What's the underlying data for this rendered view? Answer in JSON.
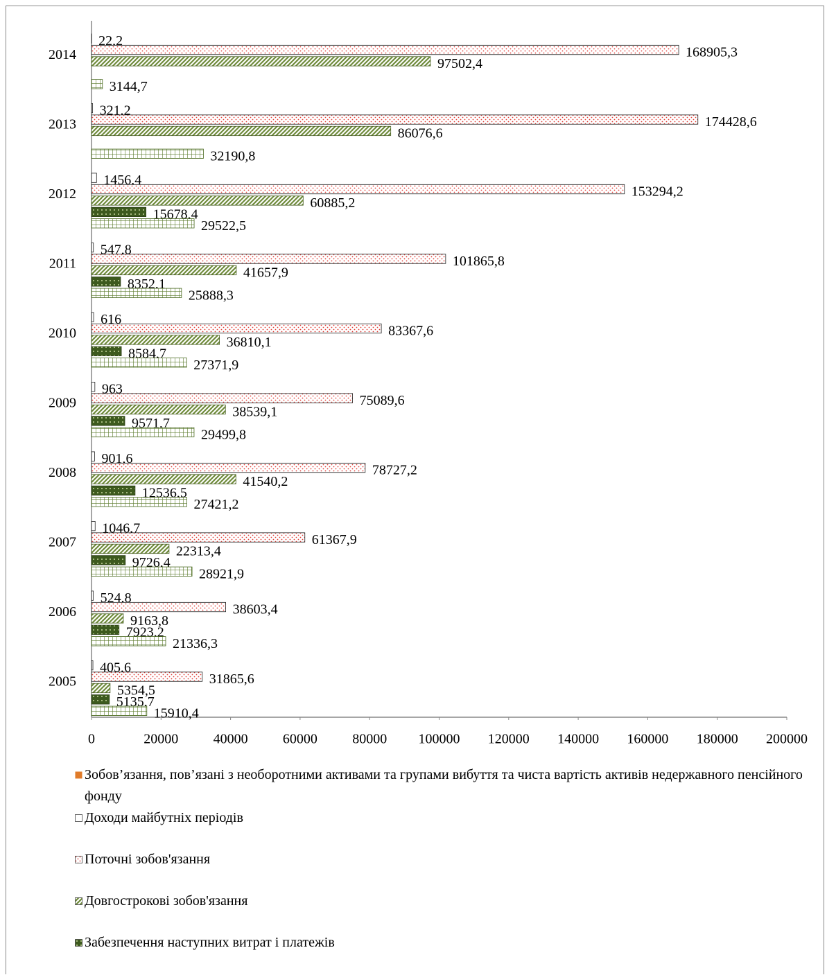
{
  "chart_data": {
    "type": "bar",
    "orientation": "horizontal",
    "categories": [
      "2005",
      "2006",
      "2007",
      "2008",
      "2009",
      "2010",
      "2011",
      "2012",
      "2013",
      "2014"
    ],
    "series": [
      {
        "name": "Зобов’язання, пов’язані з необоротними активами та групами вибуття та чиста вартість активів недержавного пенсійного фонду",
        "color": "#e07b2a",
        "values": [
          null,
          null,
          null,
          null,
          null,
          null,
          null,
          null,
          null,
          null
        ]
      },
      {
        "name": "Доходи майбутніх періодів",
        "color": "#ffffff",
        "values": [
          405.6,
          524.8,
          1046.7,
          901.6,
          963,
          616,
          547.8,
          1456.4,
          321.2,
          22.2
        ],
        "value_labels": [
          "405,6",
          "524,8",
          "1046,7",
          "901,6",
          "963",
          "616",
          "547,8",
          "1456,4",
          "321,2",
          "22,2"
        ]
      },
      {
        "name": "Поточні зобов'язання",
        "color": "#e0403a",
        "values": [
          31865.6,
          38603.4,
          61367.9,
          78727.2,
          75089.6,
          83367.6,
          101865.8,
          153294.2,
          174428.6,
          168905.3
        ],
        "value_labels": [
          "31865,6",
          "38603,4",
          "61367,9",
          "78727,2",
          "75089,6",
          "83367,6",
          "101865,8",
          "153294,2",
          "174428,6",
          "168905,3"
        ]
      },
      {
        "name": "Довгострокові зобов'язання",
        "color": "#6e8a3a",
        "values": [
          5354.5,
          9163.8,
          22313.4,
          41540.2,
          38539.1,
          36810.1,
          41657.9,
          60885.2,
          86076.6,
          97502.4
        ],
        "value_labels": [
          "5354,5",
          "9163,8",
          "22313,4",
          "41540,2",
          "38539,1",
          "36810,1",
          "41657,9",
          "60885,2",
          "86076,6",
          "97502,4"
        ]
      },
      {
        "name": "Забезпечення наступних витрат і платежів",
        "color": "#3d5a1e",
        "values": [
          5135.7,
          7923.2,
          9726.4,
          12536.5,
          9571.7,
          8584.7,
          8352.1,
          15678.4,
          null,
          null
        ],
        "value_labels": [
          "5135,7",
          "7923,2",
          "9726,4",
          "12536,5",
          "9571,7",
          "8584,7",
          "8352,1",
          "15678,4",
          null,
          null
        ]
      },
      {
        "color": "#5a7a2a",
        "values": [
          15910.4,
          21336.3,
          28921.9,
          27421.2,
          29499.8,
          27371.9,
          25888.3,
          29522.5,
          32190.8,
          3144.7
        ],
        "value_labels": [
          "15910,4",
          "21336,3",
          "28921,9",
          "27421,2",
          "29499,8",
          "27371,9",
          "25888,3",
          "29522,5",
          "32190,8",
          "3144,7"
        ]
      }
    ],
    "xlim": [
      0,
      200000
    ],
    "xticks": [
      0,
      20000,
      40000,
      60000,
      80000,
      100000,
      120000,
      140000,
      160000,
      180000,
      200000
    ],
    "grid": false
  }
}
